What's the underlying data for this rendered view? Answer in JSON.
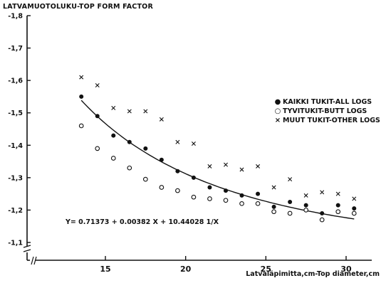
{
  "chart_data": {
    "type": "scatter",
    "title": "LATVAMUOTOLUKU-TOP FORM FACTOR",
    "xlabel": "Latvaläpimitta,cm-Top diameter,cm",
    "ylabel": "",
    "xlim": [
      11,
      32
    ],
    "ylim": [
      -1.8,
      -1.1
    ],
    "x_ticks": [
      15,
      20,
      25,
      30
    ],
    "y_ticks": [
      -1.8,
      -1.7,
      -1.6,
      -1.5,
      -1.4,
      -1.3,
      -1.2,
      -1.1
    ],
    "y_tick_labels": [
      "-1,8",
      "-1,7",
      "-1,6",
      "-1,5",
      "-1,4",
      "-1,3",
      "-1,2",
      "-1,1"
    ],
    "axis_break": true,
    "legend_position": "right",
    "series": [
      {
        "name": "KAIKKI TUKIT-ALL LOGS",
        "marker": "filled-circle",
        "x": [
          13.5,
          14.5,
          15.5,
          16.5,
          17.5,
          18.5,
          19.5,
          20.5,
          21.5,
          22.5,
          23.5,
          24.5,
          25.5,
          26.5,
          27.5,
          28.5,
          29.5,
          30.5
        ],
        "y": [
          -1.55,
          -1.49,
          -1.43,
          -1.41,
          -1.39,
          -1.355,
          -1.32,
          -1.3,
          -1.27,
          -1.26,
          -1.245,
          -1.25,
          -1.21,
          -1.225,
          -1.215,
          -1.19,
          -1.215,
          -1.205
        ]
      },
      {
        "name": "TYVITUKIT-BUTT LOGS",
        "marker": "open-circle",
        "x": [
          13.5,
          14.5,
          15.5,
          16.5,
          17.5,
          18.5,
          19.5,
          20.5,
          21.5,
          22.5,
          23.5,
          24.5,
          25.5,
          26.5,
          27.5,
          28.5,
          29.5,
          30.5
        ],
        "y": [
          -1.46,
          -1.39,
          -1.36,
          -1.33,
          -1.295,
          -1.27,
          -1.26,
          -1.24,
          -1.235,
          -1.23,
          -1.22,
          -1.22,
          -1.195,
          -1.19,
          -1.2,
          -1.17,
          -1.195,
          -1.19
        ]
      },
      {
        "name": "MUUT TUKIT-OTHER LOGS",
        "marker": "cross",
        "x": [
          13.5,
          14.5,
          15.5,
          16.5,
          17.5,
          18.5,
          19.5,
          20.5,
          21.5,
          22.5,
          23.5,
          24.5,
          25.5,
          26.5,
          27.5,
          28.5,
          29.5,
          30.5
        ],
        "y": [
          -1.61,
          -1.585,
          -1.515,
          -1.505,
          -1.505,
          -1.48,
          -1.41,
          -1.405,
          -1.335,
          -1.34,
          -1.325,
          -1.335,
          -1.27,
          -1.295,
          -1.245,
          -1.255,
          -1.25,
          -1.235
        ]
      }
    ],
    "fit_curve": {
      "equation": "Y= 0.71373 + 0.00382 X + 10.44028",
      "equation_fraction": "1/X",
      "a": 0.71373,
      "b": 0.00382,
      "c": 10.44028,
      "x_range": [
        13.5,
        30.5
      ],
      "sign": -1
    }
  }
}
